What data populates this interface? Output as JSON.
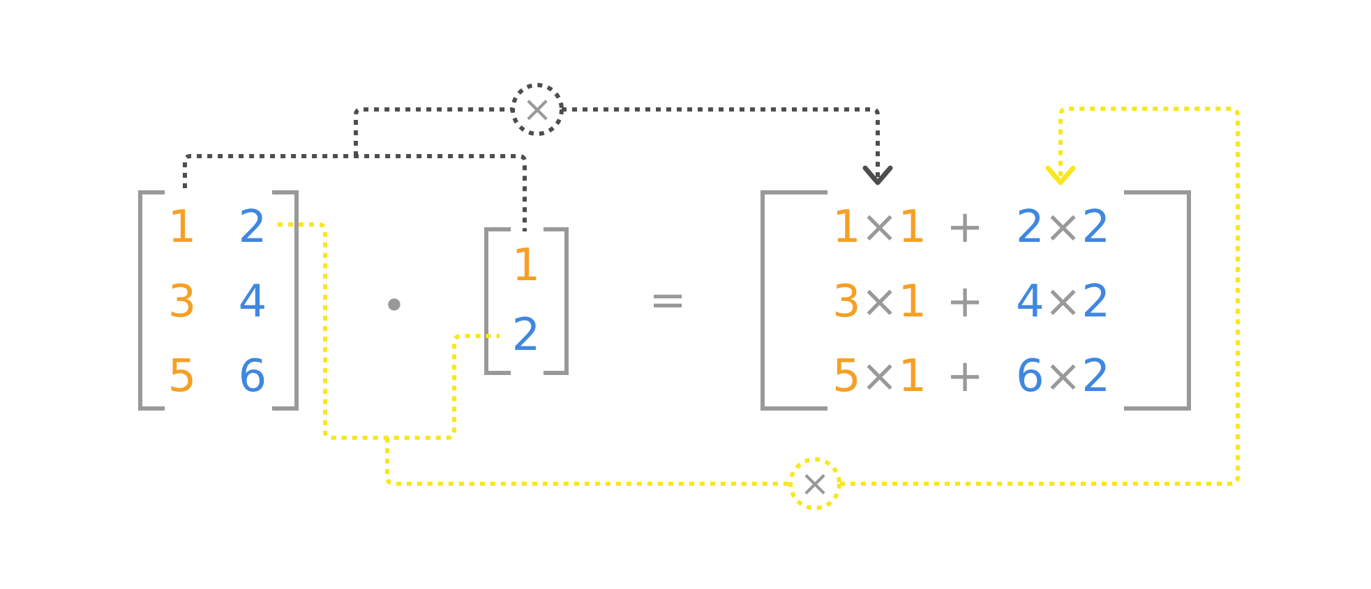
{
  "colors": {
    "orange": "#f5a024",
    "blue": "#3f87e0",
    "gray": "#999999",
    "dark": "#4d4d4d",
    "yellow": "#f8e71c"
  },
  "matrix_a": {
    "rows": [
      [
        "1",
        "2"
      ],
      [
        "3",
        "4"
      ],
      [
        "5",
        "6"
      ]
    ]
  },
  "vector_b": [
    "1",
    "2"
  ],
  "dot_operator": "•",
  "equals_operator": "=",
  "result": {
    "rows": [
      {
        "a": "1",
        "b": "1",
        "c": "2",
        "d": "2"
      },
      {
        "a": "3",
        "b": "1",
        "c": "4",
        "d": "2"
      },
      {
        "a": "5",
        "b": "1",
        "c": "6",
        "d": "2"
      }
    ],
    "times": "×",
    "plus": "+"
  },
  "multiply_symbol": "×"
}
